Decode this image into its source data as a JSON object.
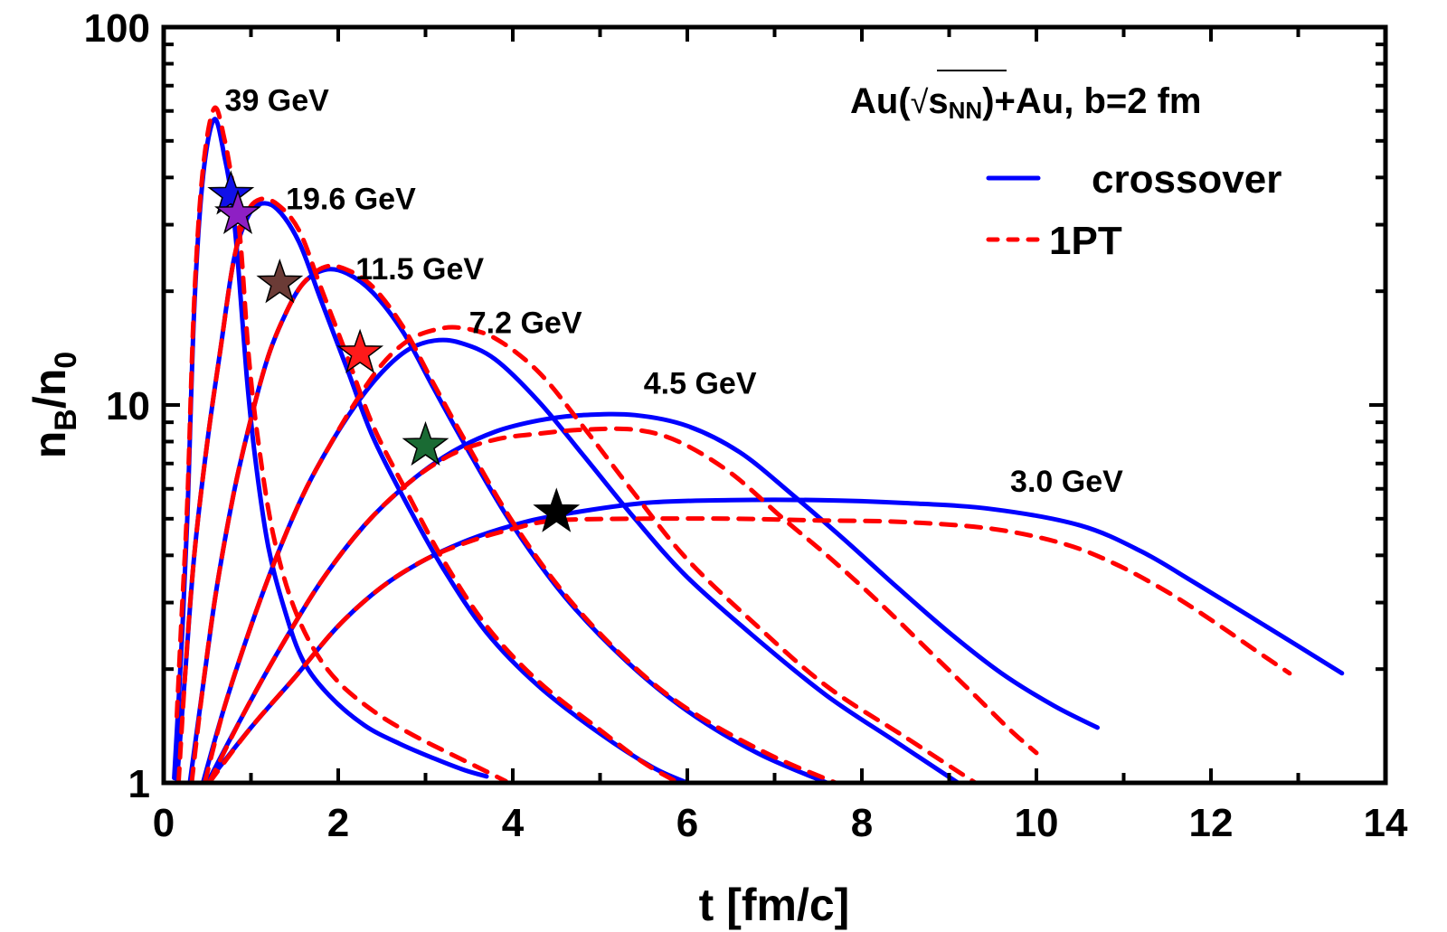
{
  "chart_data": {
    "type": "line",
    "title": "Au(√sNN)+Au, b=2 fm",
    "title_parts": {
      "prefix": "Au(",
      "sqrt": "√",
      "s": "s",
      "sub": "NN",
      "suffix": ")+Au, b=2 fm"
    },
    "xlabel": "t [fm/c]",
    "ylabel": {
      "main": "n",
      "sub1": "B",
      "slash": "/n",
      "sub2": "0"
    },
    "xlim": [
      0,
      14
    ],
    "ylim": [
      1,
      100
    ],
    "yscale": "log",
    "x_ticks": [
      "0",
      "2",
      "4",
      "6",
      "8",
      "10",
      "12",
      "14"
    ],
    "x_tick_values": [
      0,
      2,
      4,
      6,
      8,
      10,
      12,
      14
    ],
    "y_ticks": [
      "1",
      "10",
      "100"
    ],
    "y_tick_values": [
      1,
      10,
      100
    ],
    "grid": false,
    "legend": {
      "position": "top-right",
      "entries": [
        {
          "label": "crossover",
          "style": "solid",
          "color": "#0000ff"
        },
        {
          "label": "1PT",
          "style": "dashed",
          "color": "#ff0000"
        }
      ]
    },
    "colors": {
      "crossover": "#0000ff",
      "1PT": "#ff0000",
      "axis": "#000000"
    },
    "series": [
      {
        "energy": "39 GeV",
        "name": "crossover",
        "points": [
          [
            0.12,
            1.03
          ],
          [
            0.2,
            2.2
          ],
          [
            0.27,
            5
          ],
          [
            0.35,
            18
          ],
          [
            0.45,
            40
          ],
          [
            0.58,
            57
          ],
          [
            0.7,
            45
          ],
          [
            0.78,
            35
          ],
          [
            0.85,
            24
          ],
          [
            0.95,
            12
          ],
          [
            1.05,
            7.2
          ],
          [
            1.2,
            4.2
          ],
          [
            1.4,
            2.8
          ],
          [
            1.6,
            2.1
          ],
          [
            1.9,
            1.7
          ],
          [
            2.3,
            1.42
          ],
          [
            2.7,
            1.27
          ],
          [
            3.1,
            1.16
          ],
          [
            3.45,
            1.08
          ],
          [
            3.7,
            1.04
          ]
        ]
      },
      {
        "energy": "39 GeV",
        "name": "1PT",
        "points": [
          [
            0.15,
            1.5
          ],
          [
            0.2,
            2.6
          ],
          [
            0.27,
            5.5
          ],
          [
            0.35,
            19
          ],
          [
            0.45,
            42
          ],
          [
            0.58,
            61
          ],
          [
            0.7,
            50
          ],
          [
            0.8,
            37
          ],
          [
            0.88,
            27
          ],
          [
            0.98,
            13
          ],
          [
            1.1,
            7.5
          ],
          [
            1.25,
            4.6
          ],
          [
            1.45,
            3.1
          ],
          [
            1.7,
            2.3
          ],
          [
            2.0,
            1.85
          ],
          [
            2.4,
            1.55
          ],
          [
            2.8,
            1.36
          ],
          [
            3.2,
            1.22
          ],
          [
            3.6,
            1.1
          ],
          [
            3.92,
            1.01
          ]
        ]
      },
      {
        "energy": "19.6 GeV",
        "name": "crossover",
        "points": [
          [
            0.15,
            1.0
          ],
          [
            0.25,
            2.0
          ],
          [
            0.35,
            4.0
          ],
          [
            0.5,
            8
          ],
          [
            0.65,
            14
          ],
          [
            0.8,
            24
          ],
          [
            0.95,
            31
          ],
          [
            1.1,
            34
          ],
          [
            1.3,
            33
          ],
          [
            1.55,
            27
          ],
          [
            1.8,
            19
          ],
          [
            2.1,
            12.5
          ],
          [
            2.4,
            8.2
          ],
          [
            2.8,
            5.4
          ],
          [
            3.2,
            3.7
          ],
          [
            3.7,
            2.5
          ],
          [
            4.3,
            1.8
          ],
          [
            5.0,
            1.35
          ],
          [
            5.6,
            1.1
          ],
          [
            6.0,
            1.0
          ]
        ]
      },
      {
        "energy": "19.6 GeV",
        "name": "1PT",
        "points": [
          [
            0.17,
            1.0
          ],
          [
            0.25,
            2.0
          ],
          [
            0.35,
            4.0
          ],
          [
            0.5,
            8
          ],
          [
            0.65,
            14
          ],
          [
            0.8,
            24
          ],
          [
            0.95,
            32
          ],
          [
            1.1,
            35
          ],
          [
            1.3,
            34
          ],
          [
            1.55,
            29
          ],
          [
            1.8,
            20.5
          ],
          [
            2.1,
            13.5
          ],
          [
            2.4,
            8.8
          ],
          [
            2.8,
            5.8
          ],
          [
            3.2,
            3.9
          ],
          [
            3.7,
            2.6
          ],
          [
            4.3,
            1.85
          ],
          [
            5.0,
            1.38
          ],
          [
            5.5,
            1.13
          ],
          [
            5.9,
            1.0
          ]
        ]
      },
      {
        "energy": "11.5 GeV",
        "name": "crossover",
        "points": [
          [
            0.3,
            1.0
          ],
          [
            0.45,
            1.8
          ],
          [
            0.6,
            3.2
          ],
          [
            0.8,
            5.8
          ],
          [
            1.0,
            9.2
          ],
          [
            1.2,
            13.5
          ],
          [
            1.4,
            17.5
          ],
          [
            1.6,
            21
          ],
          [
            1.85,
            22.8
          ],
          [
            2.1,
            22.3
          ],
          [
            2.4,
            19.8
          ],
          [
            2.75,
            15.5
          ],
          [
            3.1,
            11
          ],
          [
            3.5,
            7.5
          ],
          [
            4.0,
            4.8
          ],
          [
            4.6,
            3.1
          ],
          [
            5.3,
            2.1
          ],
          [
            6.0,
            1.55
          ],
          [
            6.8,
            1.2
          ],
          [
            7.6,
            1.0
          ]
        ]
      },
      {
        "energy": "11.5 GeV",
        "name": "1PT",
        "points": [
          [
            0.32,
            1.0
          ],
          [
            0.45,
            1.8
          ],
          [
            0.6,
            3.2
          ],
          [
            0.8,
            5.8
          ],
          [
            1.0,
            9.2
          ],
          [
            1.2,
            13.5
          ],
          [
            1.4,
            17.5
          ],
          [
            1.6,
            21
          ],
          [
            1.85,
            23.2
          ],
          [
            2.1,
            22.8
          ],
          [
            2.4,
            20.5
          ],
          [
            2.75,
            16
          ],
          [
            3.1,
            11.3
          ],
          [
            3.5,
            7.7
          ],
          [
            4.0,
            4.9
          ],
          [
            4.6,
            3.15
          ],
          [
            5.3,
            2.12
          ],
          [
            6.0,
            1.57
          ],
          [
            6.9,
            1.2
          ],
          [
            7.7,
            1.0
          ]
        ]
      },
      {
        "energy": "7.2 GeV",
        "name": "crossover",
        "points": [
          [
            0.45,
            1.0
          ],
          [
            0.7,
            1.6
          ],
          [
            1.0,
            2.6
          ],
          [
            1.3,
            4.0
          ],
          [
            1.6,
            5.8
          ],
          [
            1.9,
            7.8
          ],
          [
            2.2,
            10
          ],
          [
            2.5,
            12.2
          ],
          [
            2.8,
            14
          ],
          [
            3.1,
            14.8
          ],
          [
            3.4,
            14.6
          ],
          [
            3.8,
            13.2
          ],
          [
            4.3,
            10.2
          ],
          [
            4.8,
            7.4
          ],
          [
            5.4,
            5.0
          ],
          [
            6.0,
            3.5
          ],
          [
            6.8,
            2.4
          ],
          [
            7.6,
            1.7
          ],
          [
            8.4,
            1.28
          ],
          [
            9.1,
            1.0
          ]
        ]
      },
      {
        "energy": "7.2 GeV",
        "name": "1PT",
        "points": [
          [
            0.47,
            1.0
          ],
          [
            0.7,
            1.6
          ],
          [
            1.0,
            2.6
          ],
          [
            1.3,
            4.0
          ],
          [
            1.6,
            5.8
          ],
          [
            1.9,
            7.8
          ],
          [
            2.2,
            10.2
          ],
          [
            2.5,
            12.8
          ],
          [
            2.8,
            14.8
          ],
          [
            3.1,
            15.8
          ],
          [
            3.4,
            16
          ],
          [
            3.8,
            15
          ],
          [
            4.3,
            12.2
          ],
          [
            4.8,
            8.8
          ],
          [
            5.4,
            5.8
          ],
          [
            6.0,
            3.9
          ],
          [
            6.8,
            2.6
          ],
          [
            7.6,
            1.8
          ],
          [
            8.5,
            1.32
          ],
          [
            9.3,
            1.0
          ]
        ]
      },
      {
        "energy": "4.5 GeV",
        "name": "crossover",
        "points": [
          [
            0.5,
            1.0
          ],
          [
            0.9,
            1.5
          ],
          [
            1.3,
            2.2
          ],
          [
            1.8,
            3.4
          ],
          [
            2.3,
            4.8
          ],
          [
            2.8,
            6.2
          ],
          [
            3.3,
            7.5
          ],
          [
            3.8,
            8.5
          ],
          [
            4.3,
            9.1
          ],
          [
            4.8,
            9.4
          ],
          [
            5.4,
            9.4
          ],
          [
            6.0,
            8.8
          ],
          [
            6.6,
            7.5
          ],
          [
            7.2,
            5.8
          ],
          [
            7.8,
            4.4
          ],
          [
            8.4,
            3.3
          ],
          [
            9.0,
            2.5
          ],
          [
            9.6,
            1.95
          ],
          [
            10.2,
            1.6
          ],
          [
            10.7,
            1.4
          ]
        ]
      },
      {
        "energy": "4.5 GeV",
        "name": "1PT",
        "points": [
          [
            0.52,
            1.0
          ],
          [
            0.9,
            1.5
          ],
          [
            1.3,
            2.2
          ],
          [
            1.8,
            3.4
          ],
          [
            2.3,
            4.8
          ],
          [
            2.8,
            6.2
          ],
          [
            3.3,
            7.4
          ],
          [
            3.8,
            8.1
          ],
          [
            4.3,
            8.4
          ],
          [
            4.8,
            8.6
          ],
          [
            5.4,
            8.6
          ],
          [
            5.9,
            8.0
          ],
          [
            6.5,
            6.6
          ],
          [
            7.1,
            5.0
          ],
          [
            7.6,
            4.0
          ],
          [
            8.2,
            3.0
          ],
          [
            8.8,
            2.2
          ],
          [
            9.3,
            1.7
          ],
          [
            9.7,
            1.38
          ],
          [
            10.0,
            1.2
          ]
        ]
      },
      {
        "energy": "3.0 GeV",
        "name": "crossover",
        "points": [
          [
            0.5,
            1.0
          ],
          [
            1.0,
            1.4
          ],
          [
            1.5,
            1.9
          ],
          [
            2.0,
            2.6
          ],
          [
            2.5,
            3.3
          ],
          [
            3.0,
            3.9
          ],
          [
            3.5,
            4.4
          ],
          [
            4.0,
            4.8
          ],
          [
            4.5,
            5.1
          ],
          [
            5.5,
            5.5
          ],
          [
            6.5,
            5.6
          ],
          [
            7.5,
            5.6
          ],
          [
            8.5,
            5.5
          ],
          [
            9.5,
            5.3
          ],
          [
            10.5,
            4.8
          ],
          [
            11.2,
            4.1
          ],
          [
            11.8,
            3.4
          ],
          [
            12.4,
            2.8
          ],
          [
            13.0,
            2.3
          ],
          [
            13.5,
            1.95
          ]
        ]
      },
      {
        "energy": "3.0 GeV",
        "name": "1PT",
        "points": [
          [
            0.52,
            1.0
          ],
          [
            1.0,
            1.4
          ],
          [
            1.5,
            1.9
          ],
          [
            2.0,
            2.6
          ],
          [
            2.5,
            3.3
          ],
          [
            3.0,
            3.9
          ],
          [
            3.5,
            4.35
          ],
          [
            4.0,
            4.7
          ],
          [
            4.5,
            4.95
          ],
          [
            5.5,
            5.0
          ],
          [
            6.5,
            5.0
          ],
          [
            7.5,
            4.95
          ],
          [
            8.5,
            4.9
          ],
          [
            9.5,
            4.7
          ],
          [
            10.3,
            4.3
          ],
          [
            10.9,
            3.8
          ],
          [
            11.5,
            3.2
          ],
          [
            12.0,
            2.7
          ],
          [
            12.5,
            2.25
          ],
          [
            12.9,
            1.95
          ]
        ]
      }
    ],
    "annotations": [
      {
        "text": "39 GeV",
        "t": 0.7,
        "v": 60
      },
      {
        "text": "19.6 GeV",
        "t": 1.4,
        "v": 33
      },
      {
        "text": "11.5 GeV",
        "t": 2.2,
        "v": 21.5
      },
      {
        "text": "7.2 GeV",
        "t": 3.5,
        "v": 15.5
      },
      {
        "text": "4.5 GeV",
        "t": 5.5,
        "v": 10.7
      },
      {
        "text": "3.0 GeV",
        "t": 9.7,
        "v": 5.9
      }
    ],
    "markers": [
      {
        "energy": "39 GeV",
        "t": 0.77,
        "v": 36,
        "color": "#1010e8"
      },
      {
        "energy": "19.6 GeV",
        "t": 0.85,
        "v": 32,
        "color": "#8e1fc4"
      },
      {
        "energy": "11.5 GeV",
        "t": 1.33,
        "v": 21,
        "color": "#6b3b36"
      },
      {
        "energy": "7.2 GeV",
        "t": 2.25,
        "v": 13.7,
        "color": "#ff1a1a"
      },
      {
        "energy": "4.5 GeV",
        "t": 3.0,
        "v": 7.8,
        "color": "#1a6b34"
      },
      {
        "energy": "3.0 GeV",
        "t": 4.5,
        "v": 5.2,
        "color": "#000000"
      }
    ]
  }
}
